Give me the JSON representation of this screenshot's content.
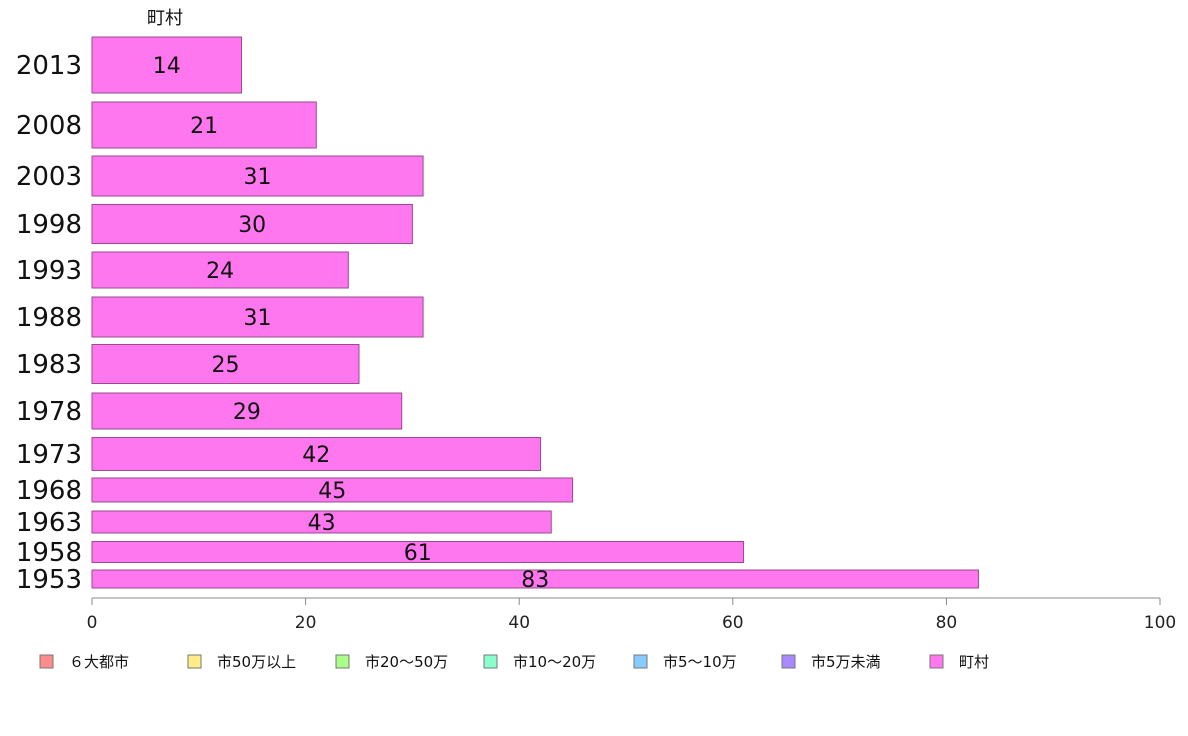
{
  "chart_data": {
    "type": "bar",
    "orientation": "horizontal",
    "series_title": "町村",
    "categories": [
      "2013",
      "2008",
      "2003",
      "1998",
      "1993",
      "1988",
      "1983",
      "1978",
      "1973",
      "1968",
      "1963",
      "1958",
      "1953"
    ],
    "series": [
      {
        "name": "町村",
        "values": [
          14,
          21,
          31,
          30,
          24,
          31,
          25,
          29,
          42,
          45,
          43,
          61,
          83
        ]
      }
    ],
    "xlim": [
      0,
      100
    ],
    "xticks": [
      "0",
      "20",
      "40",
      "60",
      "80",
      "100"
    ],
    "grid": false,
    "legend_position": "bottom",
    "legend": [
      {
        "label": "６大都市",
        "color": "#ff8c8c"
      },
      {
        "label": "市50万以上",
        "color": "#ffee88"
      },
      {
        "label": "市20〜50万",
        "color": "#aaff88"
      },
      {
        "label": "市10〜20万",
        "color": "#88ffcc"
      },
      {
        "label": "市5〜10万",
        "color": "#88ccff"
      },
      {
        "label": "市5万未満",
        "color": "#aa88ff"
      },
      {
        "label": "町村",
        "color": "#ff77ee"
      }
    ],
    "bar_color": "#ff77ee",
    "bar_edge_color": "#9a4a90"
  }
}
